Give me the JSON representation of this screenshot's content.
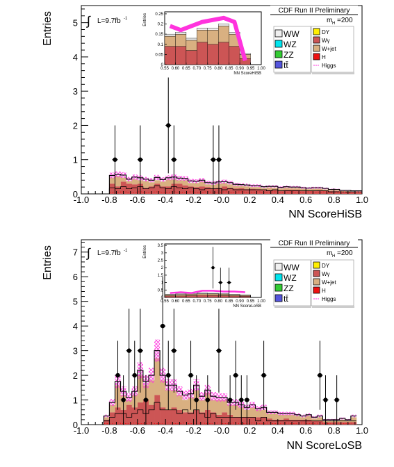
{
  "chart_data": [
    {
      "type": "bar",
      "title": "CDF Run II Preliminary",
      "xlabel": "NN ScoreHiSB",
      "ylabel": "Entries",
      "luminosity": "L=9.7fb",
      "lumi_sup": "-1",
      "mass_label": "m",
      "mass_sub": "H",
      "mass_value": "=200",
      "xlim": [
        -1.0,
        1.0
      ],
      "ylim": [
        0,
        5.5
      ],
      "xticks": [
        "-1.0",
        "-0.8",
        "-0.6",
        "-0.4",
        "-0.2",
        "-0.0",
        "0.2",
        "0.4",
        "0.6",
        "0.8",
        "1.0"
      ],
      "yticks": [
        "0",
        "1",
        "2",
        "3",
        "4",
        "5"
      ],
      "legend": [
        "WW",
        "WZ",
        "ZZ",
        "tt̄",
        "DY",
        "Wγ",
        "W+jet",
        "H",
        "Higgs"
      ],
      "bin_width": 0.04,
      "bin_start": -0.8,
      "series": [
        {
          "name": "W+jet",
          "values": [
            0.18,
            0.3,
            0.12,
            0.08,
            0.15,
            0.1,
            0.2,
            0.12,
            0.1,
            0.14,
            0.2,
            0.12,
            0.1,
            0.15,
            0.1,
            0.12,
            0.14,
            0.08,
            0.1,
            0.12,
            0.1,
            0.1,
            0.08,
            0.06,
            0.08,
            0.05,
            0.06,
            0.05,
            0.07,
            0.05,
            0.06,
            0.06,
            0.05,
            0.05,
            0.05,
            0.04,
            0.05,
            0.04,
            0.04,
            0.03,
            0.03,
            0.02,
            0.02,
            0.02,
            0.02
          ]
        },
        {
          "name": "Wγ",
          "values": [
            0.3,
            0.22,
            0.36,
            0.3,
            0.28,
            0.3,
            0.18,
            0.22,
            0.3,
            0.22,
            0.22,
            0.3,
            0.3,
            0.25,
            0.22,
            0.2,
            0.22,
            0.2,
            0.17,
            0.18,
            0.22,
            0.18,
            0.16,
            0.17,
            0.14,
            0.15,
            0.14,
            0.12,
            0.12,
            0.13,
            0.1,
            0.12,
            0.12,
            0.12,
            0.1,
            0.1,
            0.1,
            0.11,
            0.09,
            0.08,
            0.08,
            0.06,
            0.06,
            0.05,
            0.05
          ]
        },
        {
          "name": "WW",
          "values": [
            0.06,
            0.05,
            0.07,
            0.05,
            0.06,
            0.07,
            0.05,
            0.06,
            0.08,
            0.06,
            0.05,
            0.07,
            0.06,
            0.05,
            0.06,
            0.05,
            0.04,
            0.05,
            0.05,
            0.05,
            0.04,
            0.05,
            0.04,
            0.04,
            0.04,
            0.04,
            0.04,
            0.04,
            0.03,
            0.04,
            0.03,
            0.03,
            0.03,
            0.03,
            0.03,
            0.03,
            0.03,
            0.03,
            0.03,
            0.02,
            0.02,
            0.02,
            0.02,
            0.02,
            0.02
          ]
        }
      ],
      "data_points": [
        {
          "x": -0.76,
          "y": 1,
          "err": 1.0
        },
        {
          "x": -0.58,
          "y": 1,
          "err": 1.0
        },
        {
          "x": -0.38,
          "y": 2,
          "err": 1.4
        },
        {
          "x": -0.34,
          "y": 1,
          "err": 1.0
        },
        {
          "x": -0.06,
          "y": 1,
          "err": 1.0
        },
        {
          "x": -0.02,
          "y": 1,
          "err": 1.0
        }
      ],
      "inset": {
        "xlabel": "NN ScoreHiSB",
        "ylabel": "Entries",
        "xticks": [
          "0.55",
          "0.60",
          "0.65",
          "0.70",
          "0.75",
          "0.80",
          "0.85",
          "0.90",
          "0.95",
          "1.00"
        ],
        "yticks": [
          "0",
          "0.05",
          "0.1",
          "0.15",
          "0.2",
          "0.25"
        ],
        "xlim": [
          0.55,
          1.0
        ],
        "ylim": [
          0,
          0.26
        ],
        "bin_edges": [
          0.55,
          0.6,
          0.65,
          0.7,
          0.75,
          0.8,
          0.85,
          0.9,
          0.95
        ],
        "stack": [
          {
            "name": "Wγ",
            "values": [
              0.09,
              0.09,
              0.07,
              0.11,
              0.1,
              0.11,
              0.09,
              0.03
            ]
          },
          {
            "name": "W+jet",
            "values": [
              0.05,
              0.06,
              0.05,
              0.06,
              0.07,
              0.08,
              0.06,
              0.02
            ]
          },
          {
            "name": "WW",
            "values": [
              0.01,
              0.01,
              0.01,
              0.01,
              0.01,
              0.01,
              0.01,
              0.005
            ]
          }
        ],
        "higgs": [
          0.19,
          0.17,
          0.19,
          0.21,
          0.22,
          0.23,
          0.21,
          0.02
        ]
      }
    },
    {
      "type": "bar",
      "title": "CDF Run II Preliminary",
      "xlabel": "NN ScoreLoSB",
      "ylabel": "Entries",
      "luminosity": "L=9.7fb",
      "lumi_sup": "-1",
      "mass_label": "m",
      "mass_sub": "H",
      "mass_value": "=200",
      "xlim": [
        -1.0,
        1.0
      ],
      "ylim": [
        0,
        7.5
      ],
      "xticks": [
        "-1.0",
        "-0.8",
        "-0.6",
        "-0.4",
        "-0.2",
        "-0.0",
        "0.2",
        "0.4",
        "0.6",
        "0.8",
        "1.0"
      ],
      "yticks": [
        "0",
        "1",
        "2",
        "3",
        "4",
        "5",
        "6",
        "7"
      ],
      "legend": [
        "WW",
        "WZ",
        "ZZ",
        "tt̄",
        "DY",
        "Wγ",
        "W+jet",
        "H",
        "Higgs"
      ],
      "bin_width": 0.04,
      "bin_start": -0.84,
      "series": [
        {
          "name": "W+jet",
          "values": [
            0.1,
            0.3,
            0.9,
            0.6,
            0.2,
            0.5,
            1.1,
            0.6,
            1.0,
            1.5,
            1.1,
            0.8,
            0.7,
            0.6,
            0.5,
            0.6,
            0.8,
            0.5,
            0.7,
            0.5,
            0.6,
            0.5,
            0.4,
            0.5,
            0.4,
            0.3,
            0.4,
            0.3,
            0.3,
            0.2,
            0.25,
            0.2,
            0.15,
            0.2,
            0.15,
            0.1,
            0.15,
            0.1,
            0.15,
            0.05,
            0.05,
            0.05,
            0.1,
            0.05,
            0.2
          ]
        },
        {
          "name": "Wγ",
          "values": [
            0.2,
            0.5,
            0.7,
            0.6,
            0.8,
            0.7,
            0.9,
            1.0,
            0.8,
            1.2,
            0.7,
            0.6,
            0.7,
            0.6,
            0.5,
            0.5,
            0.6,
            0.5,
            0.6,
            0.5,
            0.4,
            0.5,
            0.4,
            0.3,
            0.3,
            0.3,
            0.3,
            0.3,
            0.3,
            0.25,
            0.2,
            0.2,
            0.25,
            0.2,
            0.2,
            0.2,
            0.2,
            0.15,
            0.15,
            0.1,
            0.1,
            0.1,
            0.1,
            0.1,
            0.1
          ]
        },
        {
          "name": "WW",
          "values": [
            0.05,
            0.1,
            0.15,
            0.15,
            0.1,
            0.15,
            0.2,
            0.15,
            0.2,
            0.3,
            0.2,
            0.2,
            0.2,
            0.15,
            0.2,
            0.15,
            0.2,
            0.15,
            0.1,
            0.15,
            0.1,
            0.1,
            0.1,
            0.1,
            0.1,
            0.1,
            0.1,
            0.05,
            0.1,
            0.05,
            0.05,
            0.05,
            0.05,
            0.05,
            0.05,
            0.05,
            0.05,
            0.05,
            0.05,
            0.05,
            0.05,
            0.05,
            0.05,
            0.05,
            0.05
          ]
        }
      ],
      "data_points": [
        {
          "x": -0.74,
          "y": 2,
          "err": 1.4
        },
        {
          "x": -0.7,
          "y": 1,
          "err": 1.0
        },
        {
          "x": -0.66,
          "y": 3,
          "err": 1.7
        },
        {
          "x": -0.62,
          "y": 2,
          "err": 1.4
        },
        {
          "x": -0.58,
          "y": 3,
          "err": 1.7
        },
        {
          "x": -0.54,
          "y": 1,
          "err": 1.0
        },
        {
          "x": -0.42,
          "y": 4,
          "err": 2.0
        },
        {
          "x": -0.38,
          "y": 2,
          "err": 1.4
        },
        {
          "x": -0.34,
          "y": 3,
          "err": 1.7
        },
        {
          "x": -0.22,
          "y": 2,
          "err": 1.4
        },
        {
          "x": -0.18,
          "y": 1,
          "err": 1.0
        },
        {
          "x": -0.1,
          "y": 1,
          "err": 1.0
        },
        {
          "x": -0.02,
          "y": 3,
          "err": 1.7
        },
        {
          "x": 0.06,
          "y": 1,
          "err": 1.0
        },
        {
          "x": 0.1,
          "y": 2,
          "err": 1.4
        },
        {
          "x": 0.14,
          "y": 1,
          "err": 1.0
        },
        {
          "x": 0.18,
          "y": 1,
          "err": 1.0
        },
        {
          "x": 0.3,
          "y": 2,
          "err": 1.4
        },
        {
          "x": 0.7,
          "y": 2,
          "err": 1.4
        },
        {
          "x": 0.74,
          "y": 1,
          "err": 1.0
        },
        {
          "x": 0.82,
          "y": 1,
          "err": 1.0
        }
      ],
      "inset": {
        "xlabel": "NN ScoreLoSB",
        "ylabel": "Entries",
        "xticks": [
          "0.55",
          "0.60",
          "0.65",
          "0.70",
          "0.75",
          "0.80",
          "0.85",
          "0.90",
          "0.95",
          "1.00"
        ],
        "yticks": [
          "0",
          "0.5",
          "1",
          "1.5",
          "2",
          "2.5",
          "3",
          "3.5"
        ],
        "xlim": [
          0.55,
          1.0
        ],
        "ylim": [
          0,
          3.6
        ],
        "bin_edges": [
          0.55,
          0.6,
          0.65,
          0.7,
          0.75,
          0.8,
          0.85,
          0.9,
          0.95
        ],
        "stack": [
          {
            "name": "Wγ",
            "values": [
              0.1,
              0.1,
              0.12,
              0.15,
              0.14,
              0.12,
              0.1,
              0.08
            ]
          },
          {
            "name": "W+jet",
            "values": [
              0.08,
              0.1,
              0.1,
              0.1,
              0.1,
              0.1,
              0.08,
              0.06
            ]
          },
          {
            "name": "WW",
            "values": [
              0.04,
              0.04,
              0.04,
              0.05,
              0.04,
              0.04,
              0.04,
              0.03
            ]
          }
        ],
        "higgs": [
          0.3,
          0.35,
          0.3,
          0.45,
          0.45,
          0.4,
          0.4,
          0.35
        ],
        "data": [
          {
            "x": 0.775,
            "y": 2,
            "err": 1.4
          },
          {
            "x": 0.81,
            "y": 1,
            "err": 1.0
          },
          {
            "x": 0.85,
            "y": 1,
            "err": 1.0
          }
        ]
      }
    }
  ],
  "colors": {
    "WW": "#f0f0f0",
    "WZ": "#00e5ee",
    "ZZ": "#33cc33",
    "ttbar": "#5555dd",
    "DY": "#ffee00",
    "Wgamma": "#cc5555",
    "Wjet": "#d9b081",
    "H": "#ee1111",
    "Higgs": "#ff33dd",
    "data": "#000000"
  }
}
